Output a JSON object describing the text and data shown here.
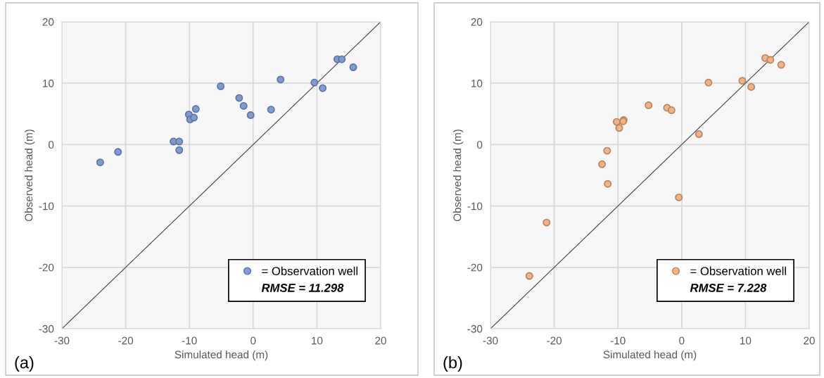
{
  "chart_data": [
    {
      "type": "scatter",
      "xlabel": "Simulated head (m)",
      "ylabel": "Observed head (m)",
      "xlim": [
        -30,
        20
      ],
      "ylim": [
        -30,
        20
      ],
      "xticks": [
        -30,
        -20,
        -10,
        0,
        10,
        20
      ],
      "yticks": [
        -30,
        -20,
        -10,
        0,
        10,
        20
      ],
      "grid": true,
      "legend": "bottom right",
      "marker": "circle",
      "annotations": [
        "RMSE = 11.298",
        "(a)"
      ],
      "series": [
        {
          "name": "= Observation well",
          "color": "#7f9bd6",
          "x": [
            13.2,
            13.9,
            15.7,
            4.3,
            9.6,
            10.9,
            -5.1,
            -2.2,
            -1.5,
            -0.4,
            2.8,
            -9.0,
            -10.1,
            -9.9,
            -9.3,
            -12.5,
            -11.6,
            -11.6,
            -21.2,
            -24.0
          ],
          "values": [
            13.9,
            13.9,
            12.6,
            10.6,
            10.1,
            9.2,
            9.5,
            7.6,
            6.3,
            4.8,
            5.7,
            5.8,
            4.9,
            4.1,
            4.4,
            0.5,
            0.5,
            -0.9,
            -1.2,
            -2.9
          ]
        },
        {
          "type": "line",
          "marker": "none",
          "color": "#404040",
          "x": [
            -30,
            20
          ],
          "values": [
            -30,
            20
          ]
        }
      ]
    },
    {
      "type": "scatter",
      "xlabel": "Simulated head (m)",
      "ylabel": "Observed head (m)",
      "xlim": [
        -30,
        20
      ],
      "ylim": [
        -30,
        20
      ],
      "xticks": [
        -30,
        -20,
        -10,
        0,
        10,
        20
      ],
      "yticks": [
        -30,
        -20,
        -10,
        0,
        10,
        20
      ],
      "grid": true,
      "legend": "bottom right",
      "marker": "circle",
      "annotations": [
        "RMSE = 7.228",
        "(b)"
      ],
      "series": [
        {
          "name": "= Observation well",
          "color": "#f4b183",
          "x": [
            13.1,
            13.9,
            15.6,
            4.2,
            9.5,
            10.9,
            -5.2,
            -2.3,
            -1.6,
            2.7,
            -9.1,
            -9.2,
            -10.2,
            -9.8,
            -11.7,
            -12.5,
            -11.6,
            -0.45,
            -21.2,
            -23.9
          ],
          "values": [
            14.1,
            13.8,
            13.0,
            10.1,
            10.4,
            9.4,
            6.4,
            6.0,
            5.6,
            1.7,
            4.0,
            3.8,
            3.7,
            2.7,
            -1.0,
            -3.2,
            -6.4,
            -8.6,
            -12.7,
            -21.4
          ]
        },
        {
          "type": "line",
          "marker": "none",
          "color": "#404040",
          "x": [
            -30,
            20
          ],
          "values": [
            -30,
            20
          ]
        }
      ]
    }
  ]
}
